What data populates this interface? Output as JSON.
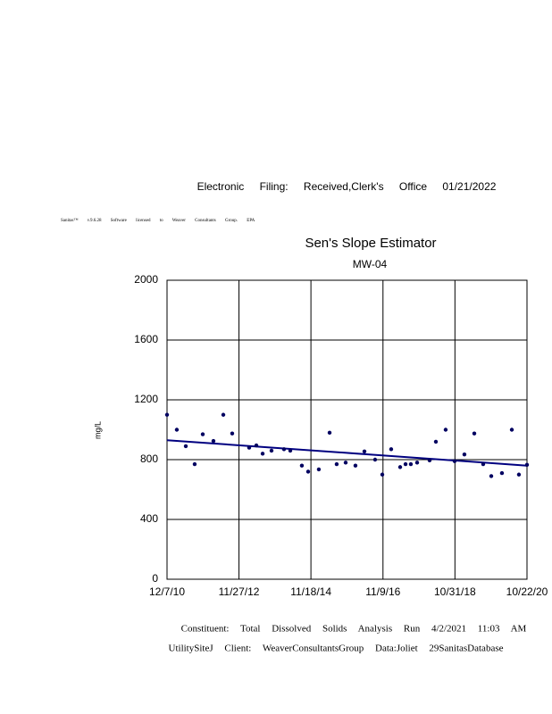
{
  "stamp": "Electronic Filing: Received,Clerk's Office 01/21/2022",
  "license": "Sanitas™ v.9.6.28 Software licensed to Weaver Consultants Group. EPA",
  "footer": [
    "Constituent: Total Dissolved Solids Analysis Run 4/2/2021 11:03 AM",
    "UtilitySiteJ Client: WeaverConsultantsGroup Data:Joliet 29SanitasDatabase"
  ],
  "chart_data": {
    "type": "scatter",
    "title": "Sen's Slope Estimator",
    "subtitle": "MW-04",
    "y_label": "mg/L",
    "x": [
      "12/7/10",
      "3/15/11",
      "6/13/11",
      "9/10/11",
      "11/30/11",
      "3/16/12",
      "6/23/12",
      "9/20/12",
      "3/9/13",
      "5/20/13",
      "7/22/13",
      "10/19/13",
      "2/21/14",
      "4/25/14",
      "8/19/14",
      "10/21/14",
      "2/5/15",
      "5/24/15",
      "8/3/15",
      "11/1/15",
      "2/7/16",
      "5/7/16",
      "8/22/16",
      "11/2/16",
      "1/30/17",
      "4/30/17",
      "6/23/17",
      "8/15/17",
      "10/17/17",
      "2/19/18",
      "4/23/18",
      "7/30/18",
      "10/28/18",
      "2/3/19",
      "5/13/19",
      "8/10/19",
      "10/30/19",
      "2/14/20",
      "5/23/20",
      "8/2/20",
      "10/22/20"
    ],
    "values": [
      1100,
      1000,
      890,
      770,
      970,
      925,
      1100,
      975,
      880,
      895,
      840,
      860,
      870,
      860,
      760,
      720,
      735,
      980,
      770,
      780,
      760,
      855,
      800,
      700,
      870,
      750,
      770,
      770,
      780,
      795,
      920,
      1000,
      790,
      835,
      975,
      770,
      690,
      710,
      1000,
      700,
      765
    ],
    "color": "#000060",
    "trend": {
      "x": [
        "12/7/10",
        "10/22/20"
      ],
      "values": [
        930,
        760
      ],
      "color": "#000080"
    },
    "xlim": [
      "12/7/10",
      "10/22/20"
    ],
    "xticks": [
      "12/7/10",
      "11/27/12",
      "11/18/14",
      "11/9/16",
      "10/31/18",
      "10/22/20"
    ],
    "ylim": [
      0,
      2000
    ],
    "yticks": [
      0,
      400,
      800,
      1200,
      1600,
      2000
    ],
    "grid": true
  }
}
